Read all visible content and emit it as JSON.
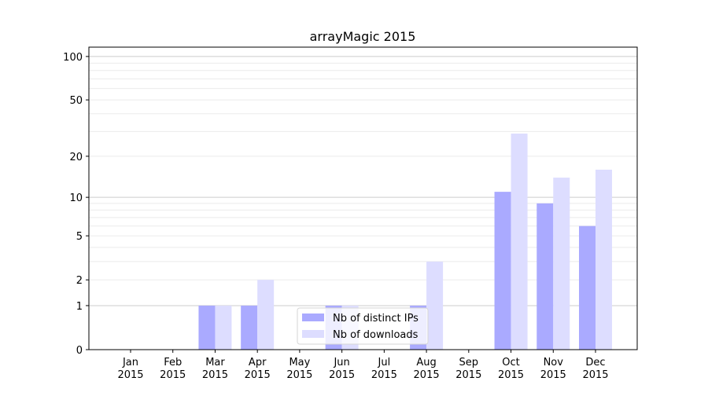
{
  "chart_data": {
    "type": "bar",
    "title": "arrayMagic 2015",
    "xlabel": "",
    "ylabel": "",
    "yscale": "log(1+y)",
    "ylim": [
      0,
      116
    ],
    "yticks": [
      0,
      1,
      2,
      5,
      10,
      20,
      50,
      100
    ],
    "ytick_labels": [
      "0",
      "1",
      "2",
      "5",
      "10",
      "20",
      "50",
      "100"
    ],
    "grid": true,
    "legend_position": "bottom-center",
    "categories": [
      "Jan\n2015",
      "Feb\n2015",
      "Mar\n2015",
      "Apr\n2015",
      "May\n2015",
      "Jun\n2015",
      "Jul\n2015",
      "Aug\n2015",
      "Sep\n2015",
      "Oct\n2015",
      "Nov\n2015",
      "Dec\n2015"
    ],
    "series": [
      {
        "name": "Nb of distinct IPs",
        "color": "#aaaaff",
        "values": [
          0,
          0,
          1,
          1,
          0,
          1,
          0,
          1,
          0,
          11,
          9,
          6
        ]
      },
      {
        "name": "Nb of downloads",
        "color": "#ddddff",
        "values": [
          0,
          0,
          1,
          2,
          0,
          1,
          0,
          3,
          0,
          29,
          14,
          16
        ]
      }
    ]
  }
}
